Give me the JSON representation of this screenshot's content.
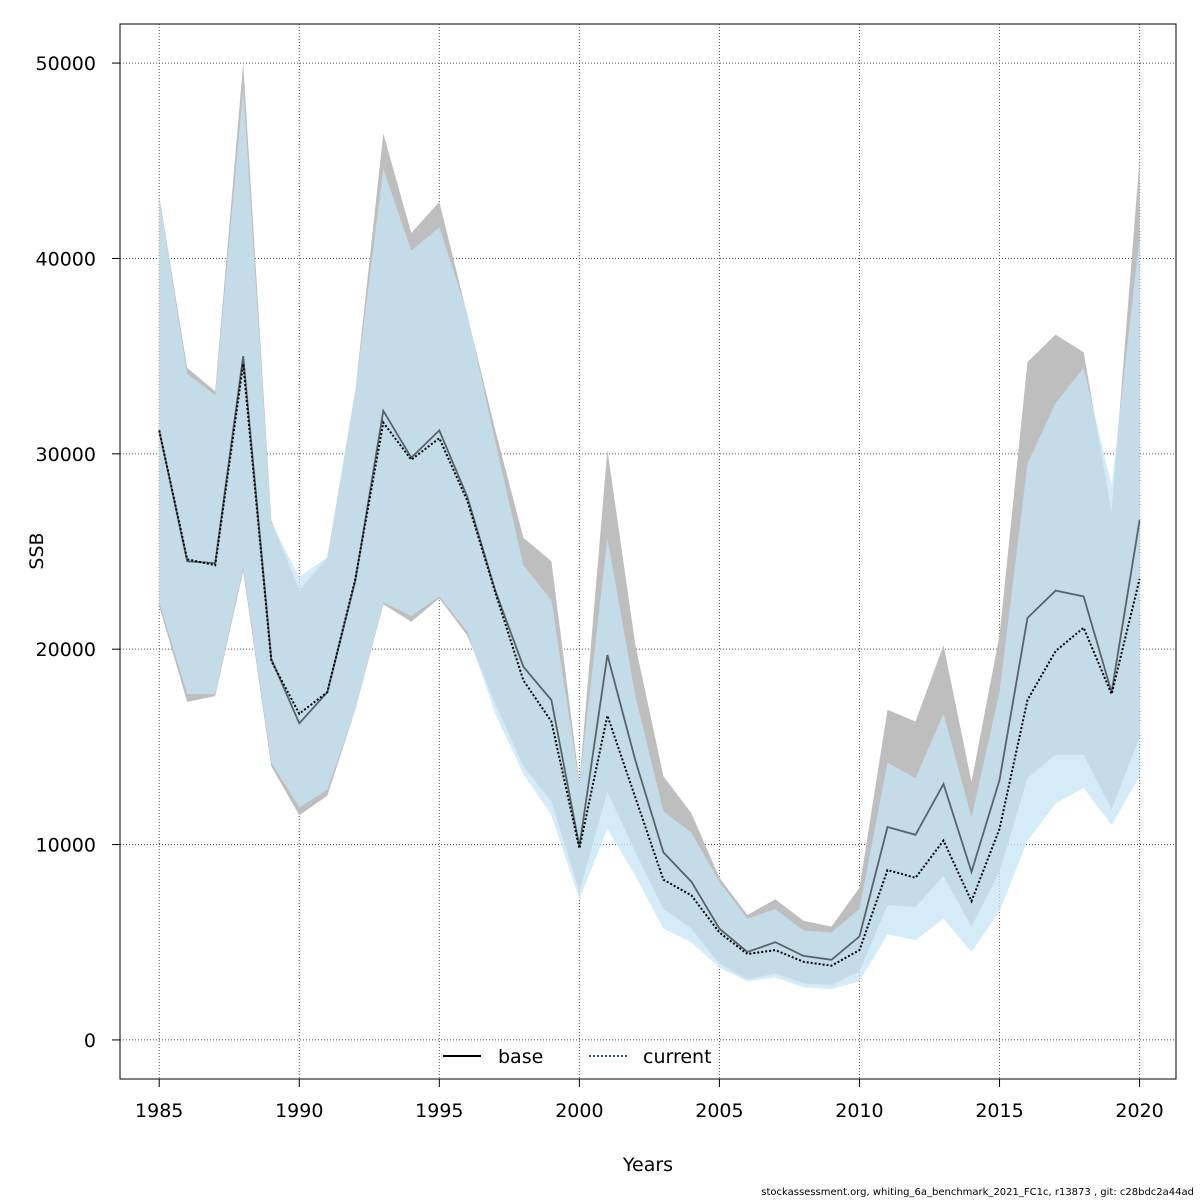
{
  "chart_data": {
    "type": "area",
    "xlabel": "Years",
    "ylabel": "SSB",
    "xlim": [
      1983.6,
      2021.3
    ],
    "ylim": [
      -2000,
      52000
    ],
    "x_ticks": [
      1985,
      1990,
      1995,
      2000,
      2005,
      2010,
      2015,
      2020
    ],
    "y_ticks": [
      0,
      10000,
      20000,
      30000,
      40000,
      50000
    ],
    "grid": true,
    "legend_position": "bottom-center",
    "x": [
      1985,
      1986,
      1987,
      1988,
      1989,
      1990,
      1991,
      1992,
      1993,
      1994,
      1995,
      1996,
      1997,
      1998,
      1999,
      2000,
      2001,
      2002,
      2003,
      2004,
      2005,
      2006,
      2007,
      2008,
      2009,
      2010,
      2011,
      2012,
      2013,
      2014,
      2015,
      2016,
      2017,
      2018,
      2019,
      2020
    ],
    "series": [
      {
        "name": "base",
        "color": "#000000",
        "band_color": "#bebebe",
        "line_style": "solid",
        "values": [
          31200,
          24500,
          24400,
          35000,
          19500,
          16200,
          17800,
          23500,
          32200,
          29800,
          31200,
          27800,
          23000,
          19100,
          17400,
          9900,
          19700,
          14300,
          9600,
          8100,
          5700,
          4500,
          5000,
          4300,
          4100,
          5300,
          10900,
          10500,
          13100,
          8600,
          13300,
          21600,
          23000,
          22700,
          17800,
          26600
        ],
        "lower": [
          22200,
          17300,
          17600,
          24000,
          14000,
          11500,
          12500,
          16900,
          22300,
          21400,
          22600,
          20700,
          17200,
          14000,
          12200,
          7600,
          12700,
          9600,
          6700,
          5700,
          3900,
          3100,
          3400,
          2900,
          2800,
          3500,
          6900,
          6800,
          8400,
          5800,
          8600,
          13400,
          14600,
          14600,
          11800,
          15500
        ],
        "upper": [
          43200,
          34400,
          33200,
          50000,
          26600,
          23000,
          24700,
          33200,
          46400,
          41300,
          42900,
          37100,
          31200,
          25700,
          24500,
          13200,
          30200,
          20200,
          13500,
          11600,
          8300,
          6400,
          7200,
          6100,
          5800,
          7800,
          16900,
          16300,
          20200,
          13200,
          20700,
          34700,
          36100,
          35200,
          27000,
          45100
        ]
      },
      {
        "name": "current",
        "color": "#1a5e8a",
        "band_color": "#c4e5f6",
        "line_style": "dotted",
        "values": [
          31200,
          24600,
          24300,
          34600,
          19400,
          16700,
          17800,
          23600,
          31600,
          29700,
          30800,
          27600,
          22900,
          18400,
          16300,
          9800,
          16600,
          12400,
          8200,
          7400,
          5500,
          4400,
          4600,
          4000,
          3800,
          4600,
          8700,
          8300,
          10200,
          7100,
          10800,
          17400,
          19900,
          21100,
          17700,
          23600
        ],
        "lower": [
          22400,
          17700,
          17700,
          24200,
          14200,
          11900,
          12800,
          16900,
          22400,
          21700,
          22700,
          20900,
          16700,
          13600,
          11500,
          7200,
          10800,
          8400,
          5700,
          5000,
          3700,
          3000,
          3200,
          2700,
          2600,
          3000,
          5400,
          5100,
          6200,
          4500,
          6600,
          10200,
          12100,
          12900,
          11000,
          13500
        ],
        "upper": [
          43100,
          34100,
          33000,
          48700,
          26500,
          23700,
          24700,
          33200,
          44600,
          40400,
          41600,
          37200,
          30600,
          24300,
          22500,
          13100,
          25700,
          17600,
          11700,
          10600,
          8100,
          6200,
          6700,
          5600,
          5500,
          6700,
          14200,
          13400,
          16700,
          11400,
          17800,
          29500,
          32600,
          34400,
          28400,
          41100
        ]
      }
    ]
  },
  "footer": "stockassessment.org, whiting_6a_benchmark_2021_FC1c, r13873 , git: c28bdc2a44ad"
}
